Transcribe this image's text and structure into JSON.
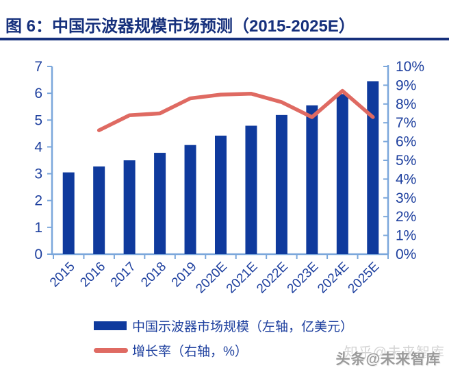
{
  "header": {
    "title": "图 6：中国示波器规模市场预测（2015-2025E）"
  },
  "chart_data": {
    "type": "combo",
    "title": "中国示波器规模市场预测（2015-2025E）",
    "categories": [
      "2015",
      "2016",
      "2017",
      "2018",
      "2019",
      "2020E",
      "2021E",
      "2022E",
      "2023E",
      "2024E",
      "2025E"
    ],
    "series": [
      {
        "name": "中国示波器市场规模（左轴，亿美元）",
        "type": "bar",
        "axis": "left",
        "values": [
          3.05,
          3.27,
          3.5,
          3.78,
          4.07,
          4.42,
          4.79,
          5.19,
          5.55,
          5.97,
          6.45
        ]
      },
      {
        "name": "增长率（右轴，%）",
        "type": "line",
        "axis": "right",
        "values": [
          null,
          6.6,
          7.4,
          7.5,
          8.3,
          8.5,
          8.55,
          8.1,
          7.3,
          8.7,
          7.3
        ]
      }
    ],
    "left_axis": {
      "min": 0,
      "max": 7,
      "tick_labels": [
        "0",
        "1",
        "2",
        "3",
        "4",
        "5",
        "6",
        "7"
      ]
    },
    "right_axis": {
      "min": 0,
      "max": 10,
      "tick_labels": [
        "0%",
        "1%",
        "2%",
        "3%",
        "4%",
        "5%",
        "6%",
        "7%",
        "8%",
        "9%",
        "10%"
      ]
    },
    "grid": false,
    "legend_position": "bottom"
  },
  "legend": {
    "items": [
      {
        "label": "中国示波器市场规模（左轴，亿美元）"
      },
      {
        "label": "增长率（右轴，%）"
      }
    ]
  },
  "watermarks": {
    "zhihu": "知乎@未来智库",
    "toutiao": "头条@未来智库"
  },
  "colors": {
    "bar": "#0f3a9d",
    "line": "#df6a62",
    "axis": "#7ba7db",
    "tick_label": "#1d3f9e",
    "title": "#16307c"
  }
}
